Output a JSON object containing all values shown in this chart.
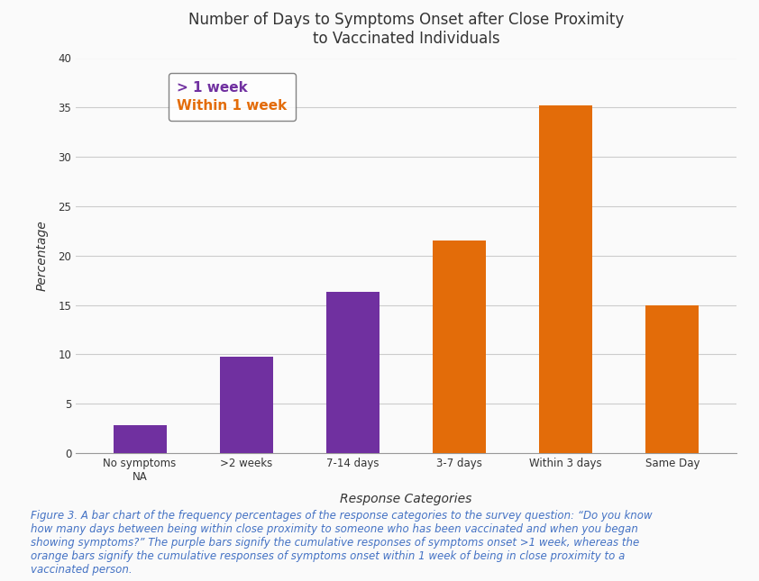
{
  "title": "Number of Days to Symptoms Onset after Close Proximity\nto Vaccinated Individuals",
  "categories": [
    "No symptoms\nNA",
    ">2 weeks",
    "7-14 days",
    "3-7 days",
    "Within 3 days",
    "Same Day"
  ],
  "values": [
    2.8,
    9.8,
    16.3,
    21.5,
    35.2,
    15.0
  ],
  "colors": [
    "#7030A0",
    "#7030A0",
    "#7030A0",
    "#E36C09",
    "#E36C09",
    "#E36C09"
  ],
  "xlabel": "Response Categories",
  "ylabel": "Percentage",
  "ylim": [
    0,
    40
  ],
  "yticks": [
    0,
    5,
    10,
    15,
    20,
    25,
    30,
    35,
    40
  ],
  "legend_labels": [
    "> 1 week",
    "Within 1 week"
  ],
  "legend_colors": [
    "#7030A0",
    "#E36C09"
  ],
  "caption": "Figure 3. A bar chart of the frequency percentages of the response categories to the survey question: “Do you know\nhow many days between being within close proximity to someone who has been vaccinated and when you began\nshowing symptoms?” The purple bars signify the cumulative responses of symptoms onset >1 week, whereas the\norange bars signify the cumulative responses of symptoms onset within 1 week of being in close proximity to a\nvaccinated person.",
  "caption_color": "#4472C4",
  "background_color": "#FAFAFA",
  "plot_bg_color": "#FAFAFA",
  "title_fontsize": 12,
  "axis_label_fontsize": 10,
  "tick_fontsize": 8.5,
  "legend_fontsize": 11,
  "caption_fontsize": 8.5,
  "bar_width": 0.5,
  "grid_color": "#CCCCCC",
  "spine_color": "#999999"
}
